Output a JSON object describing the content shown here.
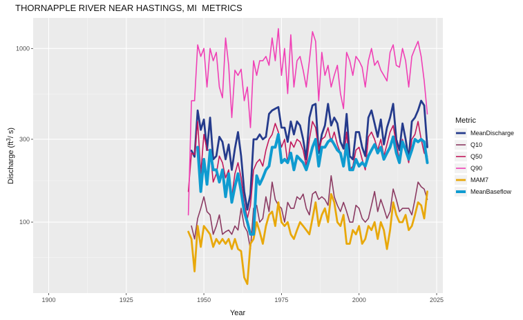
{
  "chart_data": {
    "type": "line",
    "title": "THORNAPPLE RIVER NEAR HASTINGS, MI  METRICS",
    "xlabel": "Year",
    "ylabel": "Discharge (ft",
    "ylabel_sup": "3",
    "ylabel_suffix": "/ s)",
    "xlim": [
      1895,
      2027
    ],
    "ylim": [
      39,
      1500
    ],
    "y_scale": "log",
    "x_ticks": [
      1900,
      1925,
      1950,
      1975,
      2000,
      2025
    ],
    "x_tick_labels": [
      "1900",
      "1925",
      "1950",
      "1975",
      "2000",
      "2025"
    ],
    "y_ticks": [
      100,
      300,
      1000
    ],
    "y_tick_labels": [
      "100",
      "300",
      "1000"
    ],
    "grid": true,
    "legend": {
      "title": "Metric",
      "position": "right"
    },
    "x_start": 1944,
    "x_end": 2022,
    "series": [
      {
        "name": "MeanDischarge",
        "color": "#253b8c",
        "width": 2.8,
        "values": [
          null,
          null,
          258,
          238,
          440,
          340,
          390,
          260,
          400,
          230,
          240,
          310,
          290,
          230,
          280,
          200,
          265,
          330,
          240,
          150,
          118,
          145,
          300,
          300,
          320,
          300,
          310,
          420,
          440,
          450,
          460,
          350,
          350,
          290,
          380,
          320,
          380,
          360,
          300,
          230,
          400,
          470,
          480,
          250,
          320,
          360,
          480,
          360,
          400,
          370,
          290,
          265,
          420,
          240,
          230,
          330,
          330,
          270,
          240,
          400,
          440,
          370,
          310,
          390,
          280,
          350,
          400,
          480,
          300,
          260,
          370,
          300,
          230,
          380,
          400,
          440,
          500,
          470,
          270
        ]
      },
      {
        "name": "Q10",
        "color": "#8b3a62",
        "width": 1.6,
        "values": [
          null,
          null,
          95,
          80,
          105,
          120,
          140,
          115,
          110,
          85,
          95,
          110,
          85,
          88,
          90,
          85,
          95,
          90,
          120,
          95,
          88,
          70,
          120,
          125,
          100,
          105,
          140,
          115,
          170,
          135,
          125,
          120,
          100,
          130,
          120,
          120,
          140,
          135,
          145,
          120,
          110,
          145,
          150,
          135,
          140,
          135,
          125,
          185,
          140,
          125,
          115,
          130,
          115,
          100,
          100,
          125,
          120,
          105,
          100,
          105,
          125,
          150,
          115,
          135,
          120,
          105,
          115,
          155,
          135,
          115,
          120,
          120,
          120,
          110,
          135,
          170,
          160,
          155,
          135
        ]
      },
      {
        "name": "Q50",
        "color": "#c2185b",
        "width": 1.6,
        "values": [
          null,
          150,
          250,
          245,
          380,
          190,
          320,
          260,
          260,
          170,
          190,
          240,
          220,
          180,
          200,
          140,
          190,
          220,
          180,
          130,
          105,
          125,
          200,
          220,
          230,
          210,
          260,
          300,
          320,
          370,
          330,
          270,
          300,
          220,
          290,
          270,
          300,
          290,
          260,
          210,
          300,
          380,
          350,
          260,
          300,
          310,
          350,
          290,
          330,
          280,
          250,
          220,
          330,
          200,
          210,
          260,
          270,
          230,
          200,
          310,
          330,
          300,
          260,
          300,
          240,
          280,
          330,
          360,
          280,
          230,
          300,
          260,
          220,
          300,
          320,
          380,
          300,
          250,
          240
        ]
      },
      {
        "name": "Q90",
        "color": "#f03fb5",
        "width": 1.6,
        "values": [
          null,
          110,
          500,
          500,
          1050,
          900,
          1000,
          600,
          1000,
          850,
          950,
          600,
          520,
          1150,
          800,
          400,
          750,
          700,
          760,
          500,
          600,
          350,
          850,
          700,
          850,
          850,
          900,
          800,
          1150,
          850,
          1300,
          700,
          1000,
          550,
          1200,
          600,
          850,
          900,
          750,
          600,
          850,
          1250,
          1100,
          500,
          950,
          700,
          800,
          600,
          700,
          800,
          550,
          450,
          950,
          850,
          700,
          900,
          850,
          780,
          600,
          850,
          1000,
          800,
          850,
          750,
          700,
          650,
          950,
          1050,
          800,
          780,
          1000,
          850,
          600,
          900,
          1000,
          1100,
          900,
          650,
          420
        ]
      },
      {
        "name": "MAM7",
        "color": "#e8a80b",
        "width": 2.8,
        "values": [
          null,
          88,
          80,
          52,
          95,
          72,
          95,
          90,
          85,
          72,
          80,
          75,
          80,
          75,
          80,
          70,
          80,
          70,
          68,
          48,
          44,
          75,
          80,
          100,
          88,
          75,
          95,
          110,
          115,
          95,
          130,
          100,
          95,
          100,
          85,
          80,
          90,
          100,
          95,
          90,
          85,
          105,
          130,
          95,
          110,
          120,
          100,
          145,
          130,
          100,
          95,
          110,
          75,
          75,
          90,
          85,
          95,
          75,
          80,
          95,
          90,
          100,
          80,
          100,
          90,
          70,
          90,
          130,
          110,
          100,
          100,
          110,
          90,
          95,
          110,
          130,
          125,
          105,
          150
        ]
      },
      {
        "name": "MeanBaseflow",
        "color": "#0f9bd0",
        "width": 4,
        "values": [
          null,
          null,
          null,
          null,
          270,
          150,
          230,
          165,
          260,
          200,
          200,
          170,
          200,
          140,
          190,
          130,
          160,
          190,
          150,
          115,
          100,
          85,
          85,
          185,
          165,
          180,
          200,
          210,
          270,
          270,
          320,
          220,
          230,
          220,
          250,
          200,
          240,
          230,
          220,
          200,
          230,
          270,
          300,
          210,
          270,
          270,
          290,
          300,
          280,
          260,
          250,
          210,
          280,
          200,
          200,
          230,
          210,
          220,
          210,
          240,
          260,
          280,
          250,
          270,
          230,
          250,
          270,
          310,
          250,
          220,
          290,
          260,
          230,
          260,
          300,
          290,
          300,
          290,
          220
        ]
      }
    ]
  }
}
